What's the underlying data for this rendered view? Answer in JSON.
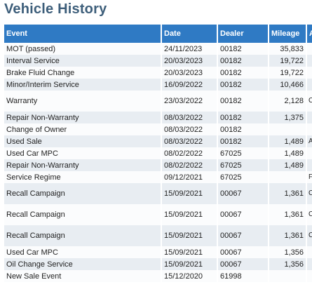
{
  "page": {
    "title": "Vehicle History"
  },
  "table": {
    "columns": [
      "Event",
      "Date",
      "Dealer",
      "Mileage",
      "A"
    ],
    "rows": [
      {
        "event": "MOT (passed)",
        "date": "24/11/2023",
        "dealer": "00182",
        "mileage": "35,833",
        "extra": "",
        "tall": false
      },
      {
        "event": "Interval Service",
        "date": "20/03/2023",
        "dealer": "00182",
        "mileage": "19,722",
        "extra": "",
        "tall": false
      },
      {
        "event": "Brake Fluid Change",
        "date": "20/03/2023",
        "dealer": "00182",
        "mileage": "19,722",
        "extra": "",
        "tall": false
      },
      {
        "event": "Minor/Interim Service",
        "date": "16/09/2022",
        "dealer": "00182",
        "mileage": "10,466",
        "extra": "",
        "tall": false
      },
      {
        "event": "Warranty",
        "date": "23/03/2022",
        "dealer": "00182",
        "mileage": "2,128",
        "extra": "C t",
        "tall": true
      },
      {
        "event": "Repair Non-Warranty",
        "date": "08/03/2022",
        "dealer": "00182",
        "mileage": "1,375",
        "extra": "",
        "tall": false
      },
      {
        "event": "Change of Owner",
        "date": "08/03/2022",
        "dealer": "00182",
        "mileage": "",
        "extra": "",
        "tall": false
      },
      {
        "event": "Used Sale",
        "date": "08/03/2022",
        "dealer": "00182",
        "mileage": "1,489",
        "extra": "A",
        "tall": false
      },
      {
        "event": "Used Car MPC",
        "date": "08/02/2022",
        "dealer": "67025",
        "mileage": "1,489",
        "extra": "",
        "tall": false
      },
      {
        "event": "Repair Non-Warranty",
        "date": "08/02/2022",
        "dealer": "67025",
        "mileage": "1,489",
        "extra": "",
        "tall": false
      },
      {
        "event": "Service Regime",
        "date": "09/12/2021",
        "dealer": "67025",
        "mileage": "",
        "extra": "F",
        "tall": false
      },
      {
        "event": "Recall Campaign",
        "date": "15/09/2021",
        "dealer": "00067",
        "mileage": "1,361",
        "extra": "C A",
        "tall": true
      },
      {
        "event": "Recall Campaign",
        "date": "15/09/2021",
        "dealer": "00067",
        "mileage": "1,361",
        "extra": "C A",
        "tall": true
      },
      {
        "event": "Recall Campaign",
        "date": "15/09/2021",
        "dealer": "00067",
        "mileage": "1,361",
        "extra": "C A",
        "tall": true
      },
      {
        "event": "Used Car MPC",
        "date": "15/09/2021",
        "dealer": "00067",
        "mileage": "1,356",
        "extra": "",
        "tall": false
      },
      {
        "event": "Oil Change Service",
        "date": "15/09/2021",
        "dealer": "00067",
        "mileage": "1,356",
        "extra": "",
        "tall": false
      },
      {
        "event": "New Sale Event",
        "date": "15/12/2020",
        "dealer": "61998",
        "mileage": "",
        "extra": "",
        "tall": false
      }
    ]
  }
}
